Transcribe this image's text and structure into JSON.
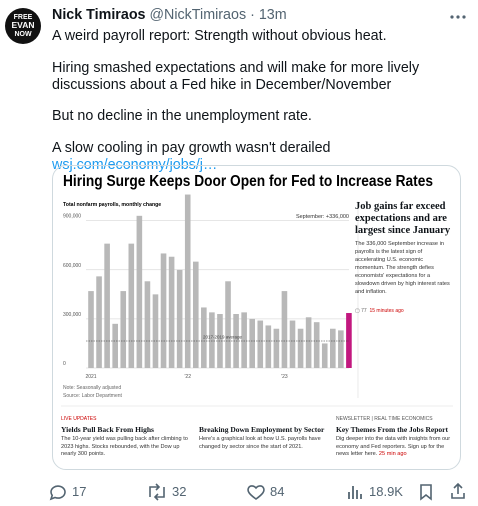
{
  "tweet": {
    "avatar_text": [
      "FREE",
      "EVAN",
      "NOW"
    ],
    "author": "Nick Timiraos",
    "handle": "@NickTimiraos",
    "separator": "·",
    "time": "13m",
    "paragraphs": [
      "A weird payroll report: Strength without obvious heat.",
      "Hiring smashed expectations and will make for more lively discussions about a Fed hike in December/November",
      "But no decline in the unemployment rate.",
      "A slow cooling in pay growth wasn't derailed"
    ],
    "link": "wsj.com/economy/jobs/j…"
  },
  "card": {
    "headline": "Hiring Surge Keeps Door Open for Fed to Increase Rates",
    "chart": {
      "type": "bar",
      "subtitle": "Total nonfarm payrolls, monthly change",
      "annotation": "September: +336,000",
      "baseline": 165000,
      "baseline_label": "2017-2019 average",
      "categories": [
        "2021",
        null,
        null,
        null,
        null,
        null,
        null,
        null,
        null,
        null,
        null,
        null,
        "'22",
        null,
        null,
        null,
        null,
        null,
        null,
        null,
        null,
        null,
        null,
        null,
        "'23",
        null,
        null,
        null,
        null,
        null,
        null,
        null,
        null
      ],
      "values": [
        470000,
        560000,
        760000,
        270000,
        470000,
        760000,
        930000,
        530000,
        450000,
        700000,
        680000,
        600000,
        1060000,
        650000,
        370000,
        340000,
        330000,
        530000,
        330000,
        340000,
        300000,
        290000,
        260000,
        240000,
        470000,
        290000,
        240000,
        310000,
        280000,
        150000,
        240000,
        230000,
        336000
      ],
      "color": "#b8b8b8",
      "highlight_color": "#c2187f",
      "ylim": [
        0,
        1100000
      ],
      "yticks": [
        0,
        {
          "value": 300000,
          "label": "300,000"
        },
        {
          "value": 600000,
          "label": "600,000"
        },
        {
          "value": 900000,
          "label": "900,000"
        }
      ],
      "grid": true,
      "notes": [
        "Note: Seasonally adjusted",
        "Source: Labor Department"
      ]
    },
    "sidebar": {
      "title": "Job gains far exceed expectations and are largest since January",
      "text": "The 336,000 September increase in payrolls is the latest sign of accelerating U.S. economic momentum. The strength defies economists' expectations for a slowdown driven by high interest rates and inflation.",
      "comments": 77,
      "time": "15 minutes ago"
    },
    "stories": [
      {
        "kicker": "LIVE UPDATES",
        "title": "Yields Pull Back From Highs",
        "text": "The 10-year yield was pulling back after climbing to 2023 highs. Stocks rebounded, with the Dow up nearly 300 points."
      },
      {
        "title": "Breaking Down Employment by Sector",
        "text": "Here's a graphical look at how U.S. payrolls have changed by sector since the start of 2021."
      },
      {
        "kicker": "NEWSLETTER | REAL TIME ECONOMICS",
        "title": "Key Themes From the Jobs Report",
        "text": "Dig deeper into the data with insights from our economy and Fed reporters. Sign up for the news letter here.",
        "time": "25 min ago"
      }
    ]
  },
  "actions": {
    "replies": 17,
    "retweets": 32,
    "likes": 84,
    "views": "18.9K"
  }
}
